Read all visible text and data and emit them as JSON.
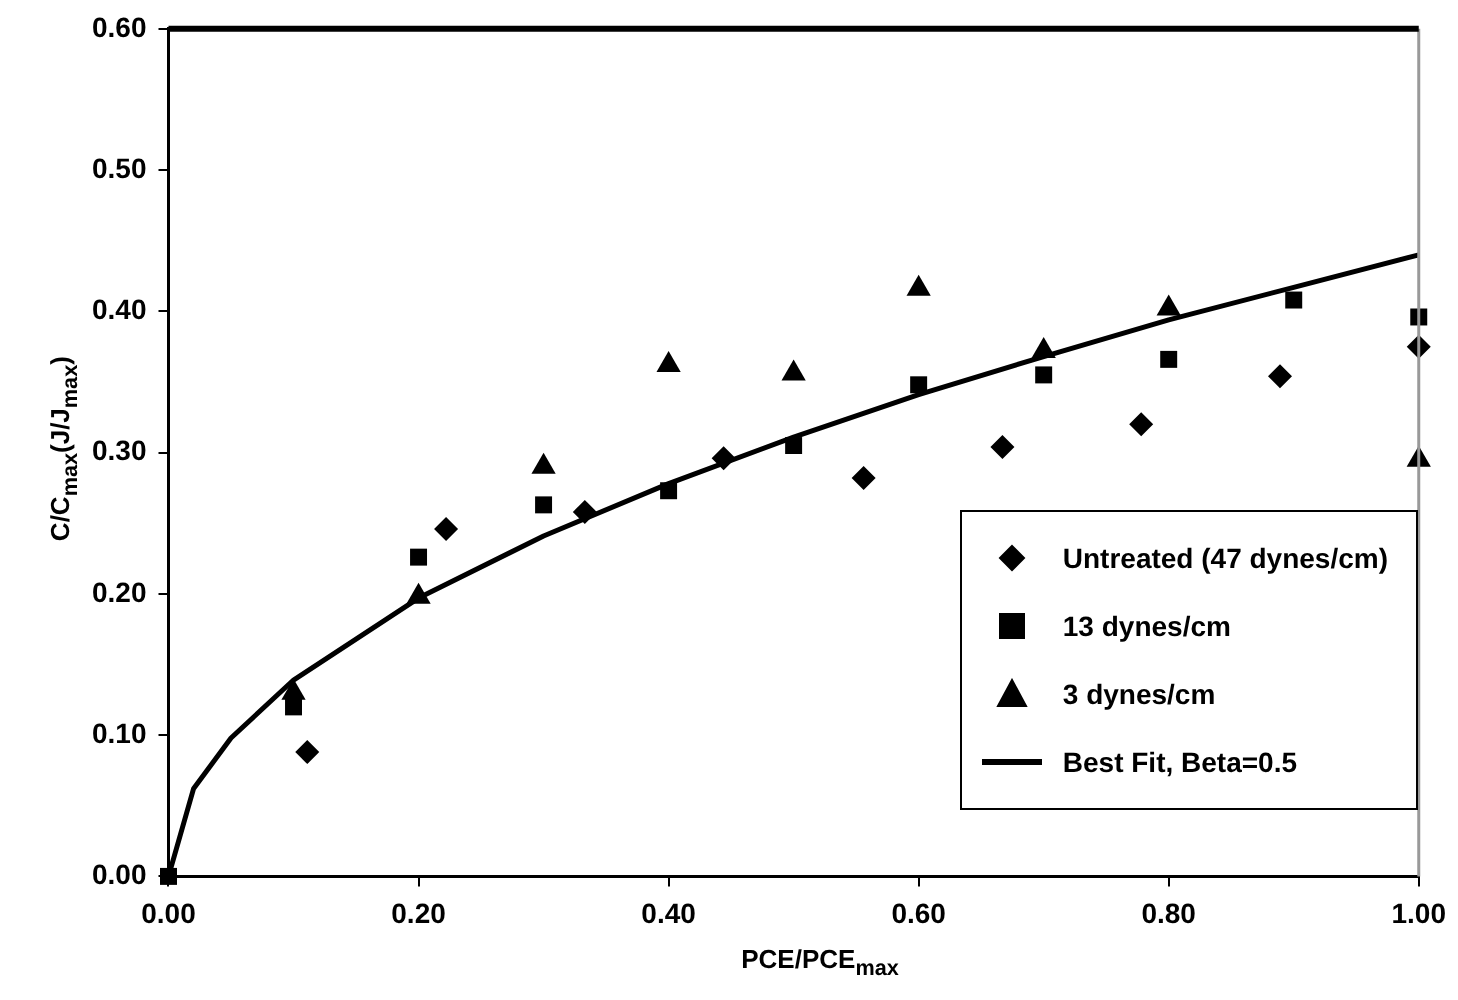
{
  "chart_data": {
    "type": "scatter",
    "xlabel": "PCE/PCE$_{max}$",
    "ylabel": "C/C$_{max}$(J/J$_{max}$)",
    "xlim": [
      0,
      1
    ],
    "xticks": [
      {
        "value": 0,
        "label": "0.00"
      },
      {
        "value": 0.2,
        "label": "0.20"
      },
      {
        "value": 0.4,
        "label": "0.40"
      },
      {
        "value": 0.6,
        "label": "0.60"
      },
      {
        "value": 0.8,
        "label": "0.80"
      },
      {
        "value": 1,
        "label": "1.00"
      }
    ],
    "ylim": [
      0,
      0.6
    ],
    "yticks": [
      {
        "value": 0,
        "label": "0.00"
      },
      {
        "value": 0.1,
        "label": "0.10"
      },
      {
        "value": 0.2,
        "label": "0.20"
      },
      {
        "value": 0.3,
        "label": "0.30"
      },
      {
        "value": 0.4,
        "label": "0.40"
      },
      {
        "value": 0.5,
        "label": "0.50"
      },
      {
        "value": 0.6,
        "label": "0.60"
      }
    ],
    "grid": false,
    "legend": "bottom right",
    "ref_lines": [
      {
        "axis": "y",
        "value": 0.6,
        "color": "#000000"
      }
    ],
    "series": [
      {
        "name": "Untreated (47 dynes/cm)",
        "color": "#000000",
        "marker": "diamond",
        "x": [
          0.111,
          0.222,
          0.333,
          0.444,
          0.556,
          0.667,
          0.778,
          0.889,
          1.0
        ],
        "values": [
          0.088,
          0.246,
          0.258,
          0.296,
          0.282,
          0.304,
          0.32,
          0.354,
          0.375
        ]
      },
      {
        "name": "13 dynes/cm",
        "color": "#000000",
        "marker": "square",
        "x": [
          0,
          0.1,
          0.2,
          0.3,
          0.4,
          0.5,
          0.6,
          0.7,
          0.8,
          0.9,
          1.0
        ],
        "values": [
          0,
          0.12,
          0.226,
          0.263,
          0.273,
          0.305,
          0.348,
          0.355,
          0.366,
          0.408,
          0.396
        ]
      },
      {
        "name": "3 dynes/cm",
        "color": "#000000",
        "marker": "triangle",
        "x": [
          0.1,
          0.2,
          0.3,
          0.4,
          0.5,
          0.6,
          0.7,
          0.8,
          1.0
        ],
        "values": [
          0.13,
          0.198,
          0.29,
          0.362,
          0.356,
          0.416,
          0.372,
          0.402,
          0.295
        ]
      },
      {
        "name": "Best Fit, Beta=0.5",
        "type": "line",
        "color": "#000000",
        "marker": "none",
        "line_style": "solid",
        "x": [
          0,
          0.02,
          0.05,
          0.1,
          0.2,
          0.3,
          0.4,
          0.5,
          0.6,
          0.7,
          0.8,
          0.9,
          1.0
        ],
        "values": [
          0,
          0.062,
          0.098,
          0.139,
          0.197,
          0.241,
          0.278,
          0.311,
          0.341,
          0.368,
          0.394,
          0.417,
          0.44
        ]
      }
    ]
  }
}
